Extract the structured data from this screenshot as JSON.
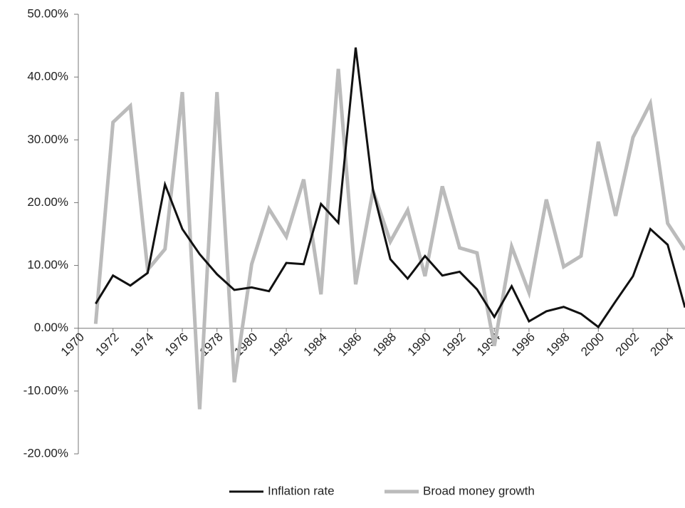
{
  "chart_data": {
    "type": "line",
    "x": [
      1971,
      1972,
      1973,
      1974,
      1975,
      1976,
      1977,
      1978,
      1979,
      1980,
      1981,
      1982,
      1983,
      1984,
      1985,
      1986,
      1987,
      1988,
      1989,
      1990,
      1991,
      1992,
      1993,
      1994,
      1995,
      1996,
      1997,
      1998,
      1999,
      2000,
      2001,
      2002,
      2003,
      2004,
      2005
    ],
    "series": [
      {
        "name": "Inflation rate",
        "color": "#111111",
        "values": [
          3.9,
          8.4,
          6.8,
          8.8,
          22.9,
          15.8,
          11.8,
          8.6,
          6.1,
          6.5,
          5.9,
          10.4,
          10.2,
          19.8,
          16.8,
          44.7,
          22.0,
          11.0,
          7.9,
          11.5,
          8.4,
          9.0,
          6.2,
          1.8,
          6.7,
          1.1,
          2.7,
          3.4,
          2.3,
          0.2,
          4.3,
          8.3,
          15.8,
          13.3,
          3.3
        ]
      },
      {
        "name": "Broad money growth",
        "color": "#bbbbbb",
        "values": [
          0.7,
          32.8,
          35.4,
          9.3,
          12.6,
          37.6,
          -12.9,
          37.6,
          -8.6,
          10.2,
          19.0,
          14.6,
          23.7,
          5.4,
          41.3,
          7.0,
          21.9,
          13.8,
          18.8,
          8.3,
          22.6,
          12.8,
          12.0,
          -2.8,
          13.0,
          5.7,
          20.5,
          9.8,
          11.5,
          29.7,
          17.9,
          30.4,
          35.8,
          16.7,
          12.5
        ]
      }
    ],
    "xlim": [
      1970,
      2005
    ],
    "xticks": [
      1970,
      1972,
      1974,
      1976,
      1978,
      1980,
      1982,
      1984,
      1986,
      1988,
      1990,
      1992,
      1994,
      1996,
      1998,
      2000,
      2002,
      2004
    ],
    "ylim": [
      -20,
      50
    ],
    "yticks": [
      {
        "value": -20,
        "label": "-20.00%"
      },
      {
        "value": -10,
        "label": "-10.00%"
      },
      {
        "value": 0,
        "label": "0.00%"
      },
      {
        "value": 10,
        "label": "10.00%"
      },
      {
        "value": 20,
        "label": "20.00%"
      },
      {
        "value": 30,
        "label": "30.00%"
      },
      {
        "value": 40,
        "label": "40.00%"
      },
      {
        "value": 50,
        "label": "50.00%"
      }
    ],
    "grid": false,
    "legend": "bottom"
  }
}
